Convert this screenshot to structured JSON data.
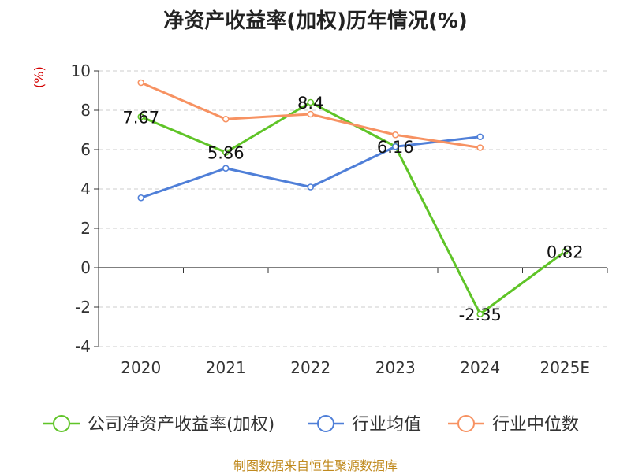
{
  "chart_data": {
    "type": "line",
    "title": "净资产收益率(加权)历年情况(%)",
    "unit_label": "(%)",
    "categories": [
      "2020",
      "2021",
      "2022",
      "2023",
      "2024",
      "2025E"
    ],
    "ylim": [
      -4,
      10
    ],
    "yticks": [
      10,
      8,
      6,
      4,
      2,
      0,
      -2,
      -4
    ],
    "grid": true,
    "legend_position": "bottom",
    "series": [
      {
        "name": "公司净资产收益率(加权)",
        "color": "#5fc427",
        "values": [
          7.67,
          5.86,
          8.4,
          6.16,
          -2.35,
          0.82
        ],
        "data_labels": [
          "7.67",
          "5.86",
          "8.4",
          "6.16",
          "-2.35",
          "0.82"
        ]
      },
      {
        "name": "行业均值",
        "color": "#4f7fd8",
        "values": [
          3.55,
          5.05,
          4.1,
          6.15,
          6.65,
          null
        ]
      },
      {
        "name": "行业中位数",
        "color": "#f79262",
        "values": [
          9.4,
          7.55,
          7.8,
          6.75,
          6.1,
          null
        ]
      }
    ]
  },
  "footer": "制图数据来自恒生聚源数据库"
}
